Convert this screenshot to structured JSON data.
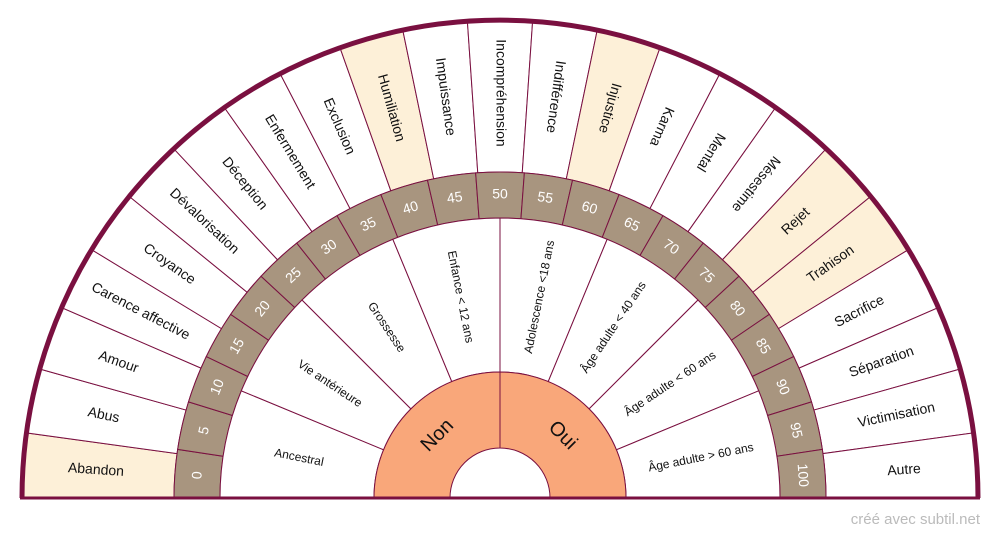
{
  "outer_sectors": [
    {
      "label": "Abandon",
      "highlighted": true
    },
    {
      "label": "Abus",
      "highlighted": false
    },
    {
      "label": "Amour",
      "highlighted": false
    },
    {
      "label": "Carence affective",
      "highlighted": false
    },
    {
      "label": "Croyance",
      "highlighted": false
    },
    {
      "label": "Dévalorisation",
      "highlighted": false
    },
    {
      "label": "Déception",
      "highlighted": false
    },
    {
      "label": "Enfermement",
      "highlighted": false
    },
    {
      "label": "Exclusion",
      "highlighted": false
    },
    {
      "label": "Humiliation",
      "highlighted": true
    },
    {
      "label": "Impuissance",
      "highlighted": false
    },
    {
      "label": "Incompréhension",
      "highlighted": false
    },
    {
      "label": "Indifférence",
      "highlighted": false
    },
    {
      "label": "Injustice",
      "highlighted": true
    },
    {
      "label": "Karma",
      "highlighted": false
    },
    {
      "label": "Mental",
      "highlighted": false
    },
    {
      "label": "Mésestime",
      "highlighted": false
    },
    {
      "label": "Rejet",
      "highlighted": true
    },
    {
      "label": "Trahison",
      "highlighted": true
    },
    {
      "label": "Sacrifice",
      "highlighted": false
    },
    {
      "label": "Séparation",
      "highlighted": false
    },
    {
      "label": "Victimisation",
      "highlighted": false
    },
    {
      "label": "Autre",
      "highlighted": false
    }
  ],
  "scale": [
    0,
    5,
    10,
    15,
    20,
    25,
    30,
    35,
    40,
    45,
    50,
    55,
    60,
    65,
    70,
    75,
    80,
    85,
    90,
    95,
    100
  ],
  "life_periods": [
    "Ancestral",
    "Vie antérieure",
    "Grossesse",
    "Enfance < 12 ans",
    "Adolescence <18 ans",
    "Âge adulte < 40 ans",
    "Âge adulte < 60 ans",
    "Âge adulte > 60 ans"
  ],
  "answers": [
    "Non",
    "Oui"
  ],
  "footer": "créé avec subtil.net"
}
